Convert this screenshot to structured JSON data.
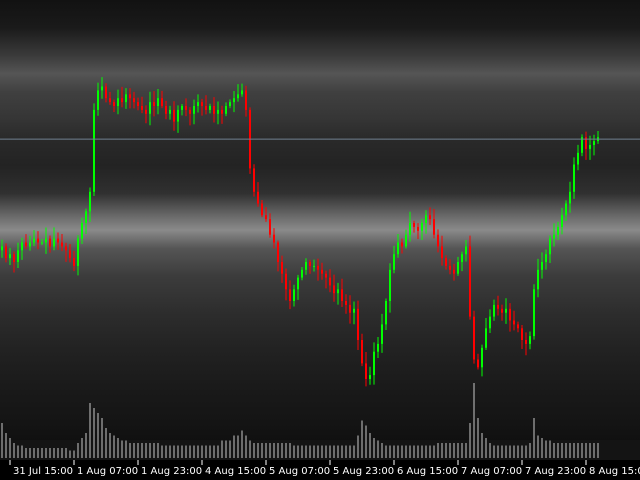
{
  "chart_data": {
    "type": "candlestick",
    "title": "",
    "xlabel": "",
    "ylabel": "",
    "grid": false,
    "legend": "none",
    "colors": {
      "background": "#000000",
      "up": "#00ff00",
      "down": "#ff0000",
      "volume": "#c8c8c8",
      "current_price_line": "#708090",
      "text": "#ffffff"
    },
    "price_range": [
      0,
      100
    ],
    "current_price": 71.5,
    "x_ticks": [
      {
        "label": "31 Jul 15:00",
        "bar": 2
      },
      {
        "label": "1 Aug 07:00",
        "bar": 18
      },
      {
        "label": "1 Aug 23:00",
        "bar": 34
      },
      {
        "label": "4 Aug 15:00",
        "bar": 50
      },
      {
        "label": "5 Aug 07:00",
        "bar": 66
      },
      {
        "label": "5 Aug 23:00",
        "bar": 82
      },
      {
        "label": "6 Aug 15:00",
        "bar": 98
      },
      {
        "label": "7 Aug 07:00",
        "bar": 114
      },
      {
        "label": "7 Aug 23:00",
        "bar": 130
      },
      {
        "label": "8 Aug 15:00",
        "bar": 146
      }
    ],
    "close": [
      44,
      41,
      42,
      40,
      43,
      45,
      44,
      45,
      46,
      45,
      45,
      46,
      44,
      46,
      45,
      44,
      43,
      41,
      39,
      46,
      50,
      53,
      58,
      79,
      84,
      85,
      82,
      81,
      80,
      82,
      81,
      83,
      82,
      81,
      80,
      79,
      78,
      81,
      80,
      82,
      80,
      78,
      79,
      76,
      79,
      80,
      79,
      78,
      80,
      81,
      80,
      79,
      80,
      78,
      79,
      78,
      80,
      81,
      82,
      83,
      84,
      79,
      64,
      58,
      55,
      52,
      51,
      47,
      45,
      40,
      37,
      33,
      30,
      33,
      36,
      38,
      40,
      39,
      39,
      38,
      37,
      36,
      34,
      32,
      33,
      30,
      29,
      27,
      28,
      20,
      14,
      10,
      11,
      17,
      19,
      24,
      30,
      38,
      42,
      45,
      44,
      47,
      50,
      49,
      48,
      50,
      52,
      51,
      47,
      44,
      41,
      39,
      38,
      37,
      40,
      42,
      44,
      26,
      15,
      13,
      18,
      23,
      26,
      29,
      28,
      27,
      28,
      25,
      24,
      23,
      20,
      19,
      21,
      33,
      38,
      40,
      42,
      46,
      47,
      49,
      52,
      55,
      58,
      65,
      68,
      72,
      69,
      70,
      71,
      72
    ],
    "volume": [
      14,
      10,
      8,
      6,
      5,
      5,
      4,
      4,
      4,
      4,
      4,
      4,
      4,
      4,
      4,
      4,
      4,
      3,
      3,
      6,
      8,
      10,
      22,
      20,
      18,
      16,
      12,
      10,
      9,
      8,
      7,
      7,
      6,
      6,
      6,
      6,
      6,
      6,
      6,
      6,
      5,
      5,
      5,
      5,
      5,
      5,
      5,
      5,
      5,
      5,
      5,
      5,
      5,
      5,
      5,
      7,
      7,
      7,
      9,
      9,
      11,
      9,
      7,
      6,
      6,
      6,
      6,
      6,
      6,
      6,
      6,
      6,
      6,
      5,
      5,
      5,
      5,
      5,
      5,
      5,
      5,
      5,
      5,
      5,
      5,
      5,
      5,
      5,
      5,
      9,
      15,
      13,
      10,
      8,
      7,
      6,
      5,
      5,
      5,
      5,
      5,
      5,
      5,
      5,
      5,
      5,
      5,
      5,
      5,
      6,
      6,
      6,
      6,
      6,
      6,
      6,
      6,
      14,
      30,
      16,
      10,
      8,
      6,
      5,
      5,
      5,
      5,
      5,
      5,
      5,
      5,
      5,
      6,
      16,
      9,
      8,
      7,
      7,
      6,
      6,
      6,
      6,
      6,
      6,
      6,
      6,
      6,
      6,
      6,
      6
    ]
  }
}
